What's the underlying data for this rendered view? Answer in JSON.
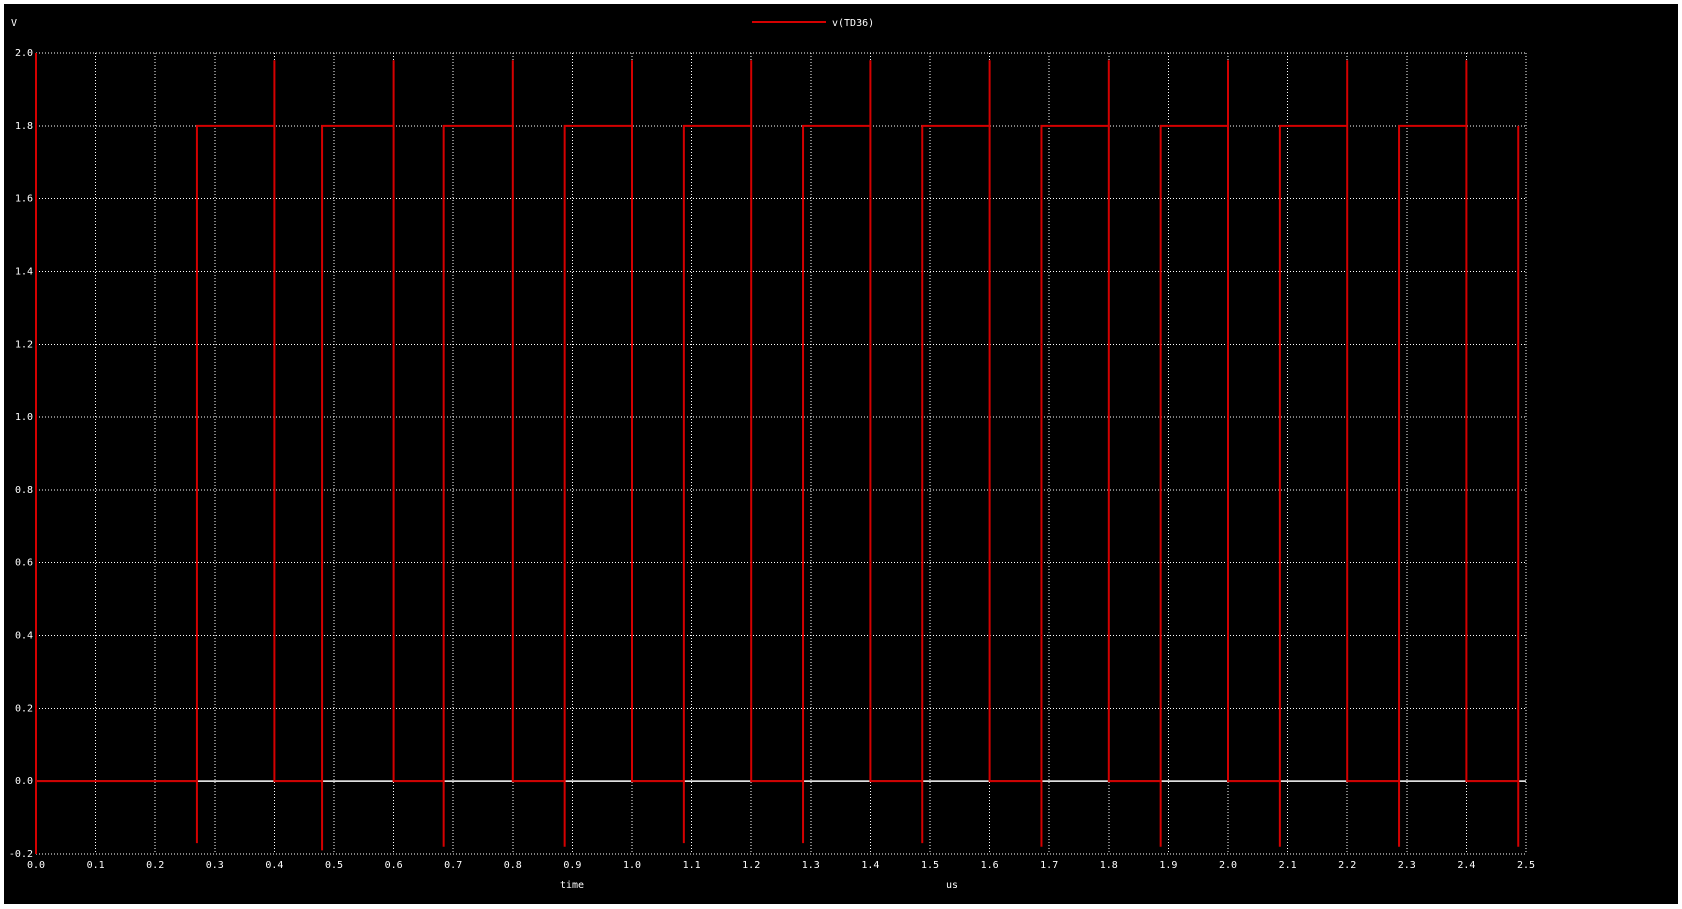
{
  "chart_data": {
    "type": "line",
    "title": "",
    "ylabel": "V",
    "xlabel_left": "time",
    "xlabel_right": "us",
    "xlim": [
      0.0,
      2.5
    ],
    "ylim": [
      -0.2,
      2.0
    ],
    "x_ticks": [
      0.0,
      0.1,
      0.2,
      0.3,
      0.4,
      0.5,
      0.6,
      0.7,
      0.8,
      0.9,
      1.0,
      1.1,
      1.2,
      1.3,
      1.4,
      1.5,
      1.6,
      1.7,
      1.8,
      1.9,
      2.0,
      2.1,
      2.2,
      2.3,
      2.4,
      2.5
    ],
    "x_tick_labels": [
      "0.0",
      "0.1",
      "0.2",
      "0.3",
      "0.4",
      "0.5",
      "0.6",
      "0.7",
      "0.8",
      "0.9",
      "1.0",
      "1.1",
      "1.2",
      "1.3",
      "1.4",
      "1.5",
      "1.6",
      "1.7",
      "1.8",
      "1.9",
      "2.0",
      "2.1",
      "2.2",
      "2.3",
      "2.4",
      "2.5"
    ],
    "y_ticks": [
      -0.2,
      0.0,
      0.2,
      0.4,
      0.6,
      0.8,
      1.0,
      1.2,
      1.4,
      1.6,
      1.8,
      2.0
    ],
    "y_tick_labels": [
      "-0.2",
      "0.0",
      "0.2",
      "0.4",
      "0.6",
      "0.8",
      "1.0",
      "1.2",
      "1.4",
      "1.6",
      "1.8",
      "2.0"
    ],
    "grid": true,
    "legend_position": "top-center",
    "colors": {
      "background": "#000000",
      "axes": "#ffffff",
      "grid": "#ffffff",
      "trace": "#d40000"
    },
    "series": [
      {
        "name": "v(TD36)",
        "color": "#d40000",
        "x": [
          0.0,
          0.0,
          0.0,
          0.27,
          0.27,
          0.27,
          0.27,
          0.4,
          0.4,
          0.4,
          0.4,
          0.48,
          0.48,
          0.48,
          0.48,
          0.6,
          0.6,
          0.6,
          0.6,
          0.684,
          0.684,
          0.684,
          0.684,
          0.8,
          0.8,
          0.8,
          0.8,
          0.887,
          0.887,
          0.887,
          0.887,
          1.0,
          1.0,
          1.0,
          1.0,
          1.087,
          1.087,
          1.087,
          1.087,
          1.2,
          1.2,
          1.2,
          1.2,
          1.287,
          1.287,
          1.287,
          1.287,
          1.4,
          1.4,
          1.4,
          1.4,
          1.487,
          1.487,
          1.487,
          1.487,
          1.6,
          1.6,
          1.6,
          1.6,
          1.687,
          1.687,
          1.687,
          1.687,
          1.8,
          1.8,
          1.8,
          1.8,
          1.887,
          1.887,
          1.887,
          1.887,
          2.0,
          2.0,
          2.0,
          2.0,
          2.087,
          2.087,
          2.087,
          2.087,
          2.2,
          2.2,
          2.2,
          2.2,
          2.287,
          2.287,
          2.287,
          2.287,
          2.4,
          2.4,
          2.4,
          2.4,
          2.487,
          2.487,
          2.487
        ],
        "y": [
          2.0,
          -0.2,
          0.0,
          0.0,
          -0.17,
          1.8,
          1.8,
          1.8,
          1.98,
          0.0,
          0.0,
          0.0,
          -0.19,
          1.8,
          1.8,
          1.8,
          1.98,
          0.0,
          0.0,
          0.0,
          -0.18,
          1.8,
          1.8,
          1.8,
          1.98,
          0.0,
          0.0,
          0.0,
          -0.18,
          1.8,
          1.8,
          1.8,
          1.98,
          0.0,
          0.0,
          0.0,
          -0.17,
          1.8,
          1.8,
          1.8,
          1.98,
          0.0,
          0.0,
          0.0,
          -0.17,
          1.8,
          1.8,
          1.8,
          1.98,
          0.0,
          0.0,
          0.0,
          -0.17,
          1.8,
          1.8,
          1.8,
          1.98,
          0.0,
          0.0,
          0.0,
          -0.18,
          1.8,
          1.8,
          1.8,
          1.98,
          0.0,
          0.0,
          0.0,
          -0.18,
          1.8,
          1.8,
          1.8,
          1.98,
          0.0,
          0.0,
          0.0,
          -0.18,
          1.8,
          1.8,
          1.8,
          1.98,
          0.0,
          0.0,
          0.0,
          -0.18,
          1.8,
          1.8,
          1.8,
          1.98,
          0.0,
          0.0,
          0.0,
          -0.18,
          1.8
        ]
      }
    ]
  }
}
